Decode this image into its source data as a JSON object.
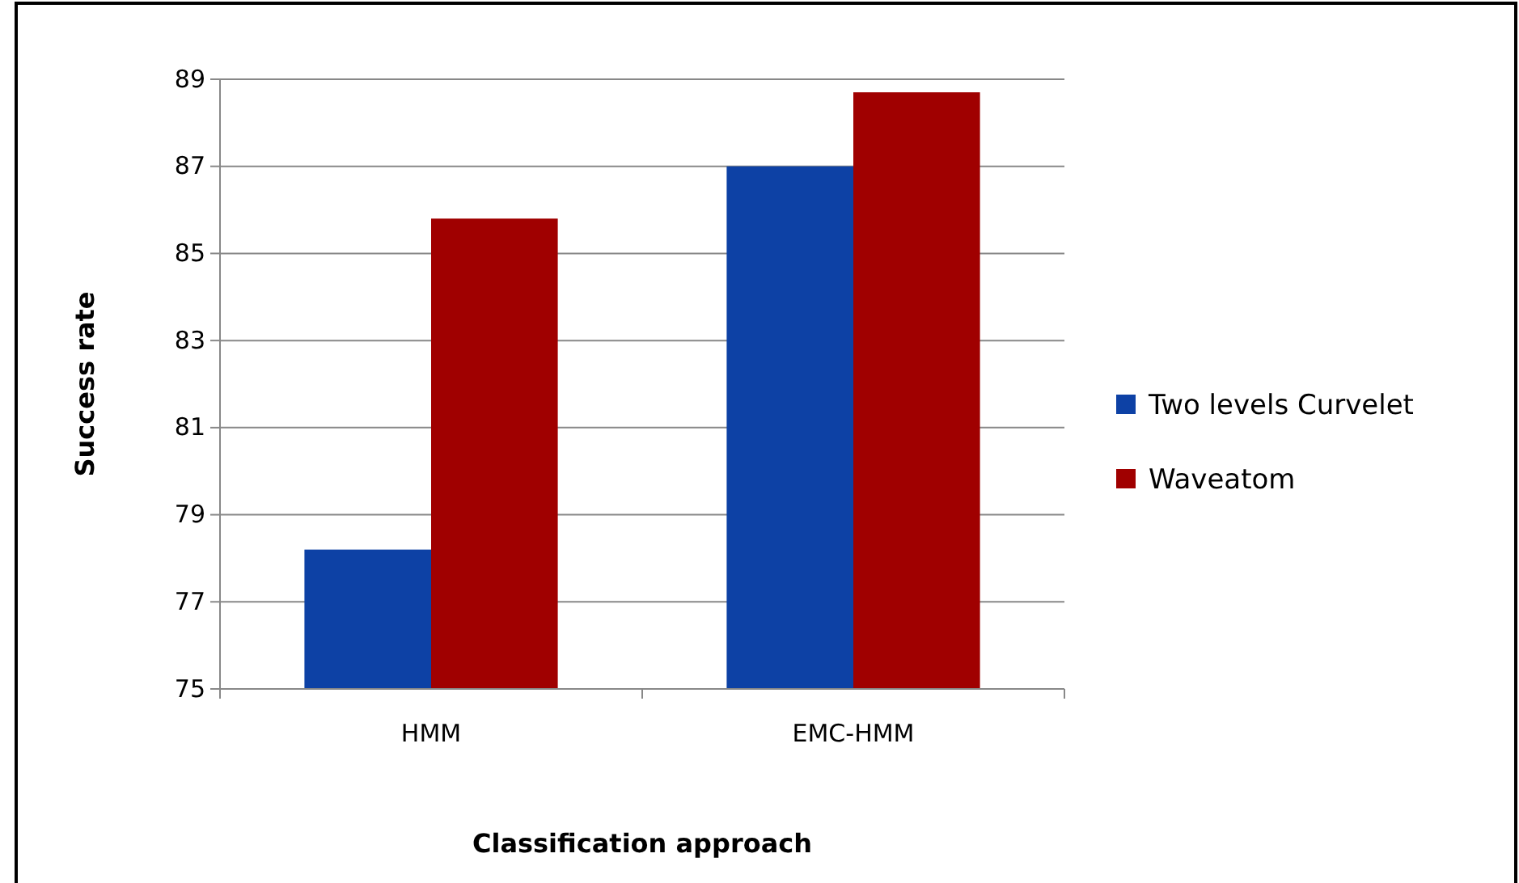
{
  "chart_data": {
    "type": "bar",
    "xlabel": "Classification  approach",
    "ylabel": "Success rate",
    "categories": [
      "HMM",
      "EMC-HMM"
    ],
    "series": [
      {
        "name": "Two levels Curvelet",
        "color": "#0d41a5",
        "values": [
          78.2,
          87.0
        ]
      },
      {
        "name": "Waveatom",
        "color": "#a00000",
        "values": [
          85.8,
          88.7
        ]
      }
    ],
    "ylim": [
      75,
      89
    ],
    "yticks": [
      75,
      77,
      79,
      81,
      83,
      85,
      87,
      89
    ],
    "grid": "y",
    "legend": "right"
  }
}
